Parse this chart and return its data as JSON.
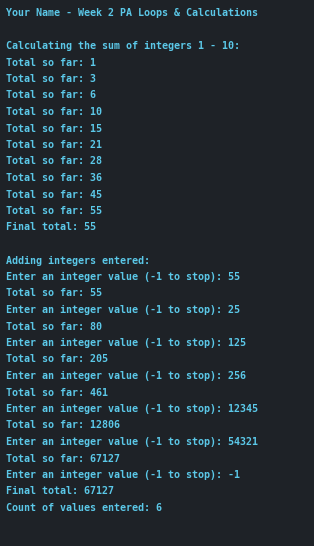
{
  "background_color": "#1e2227",
  "text_color": "#5bc8e8",
  "font_size": 7.2,
  "title": "Your Name - Week 2 PA Loops & Calculations",
  "lines": [
    "",
    "Calculating the sum of integers 1 - 10:",
    "Total so far: 1",
    "Total so far: 3",
    "Total so far: 6",
    "Total so far: 10",
    "Total so far: 15",
    "Total so far: 21",
    "Total so far: 28",
    "Total so far: 36",
    "Total so far: 45",
    "Total so far: 55",
    "Final total: 55",
    "",
    "Adding integers entered:",
    "Enter an integer value (-1 to stop): 55",
    "Total so far: 55",
    "Enter an integer value (-1 to stop): 25",
    "Total so far: 80",
    "Enter an integer value (-1 to stop): 125",
    "Total so far: 205",
    "Enter an integer value (-1 to stop): 256",
    "Total so far: 461",
    "Enter an integer value (-1 to stop): 12345",
    "Total so far: 12806",
    "Enter an integer value (-1 to stop): 54321",
    "Total so far: 67127",
    "Enter an integer value (-1 to stop): -1",
    "Final total: 67127",
    "Count of values entered: 6"
  ]
}
